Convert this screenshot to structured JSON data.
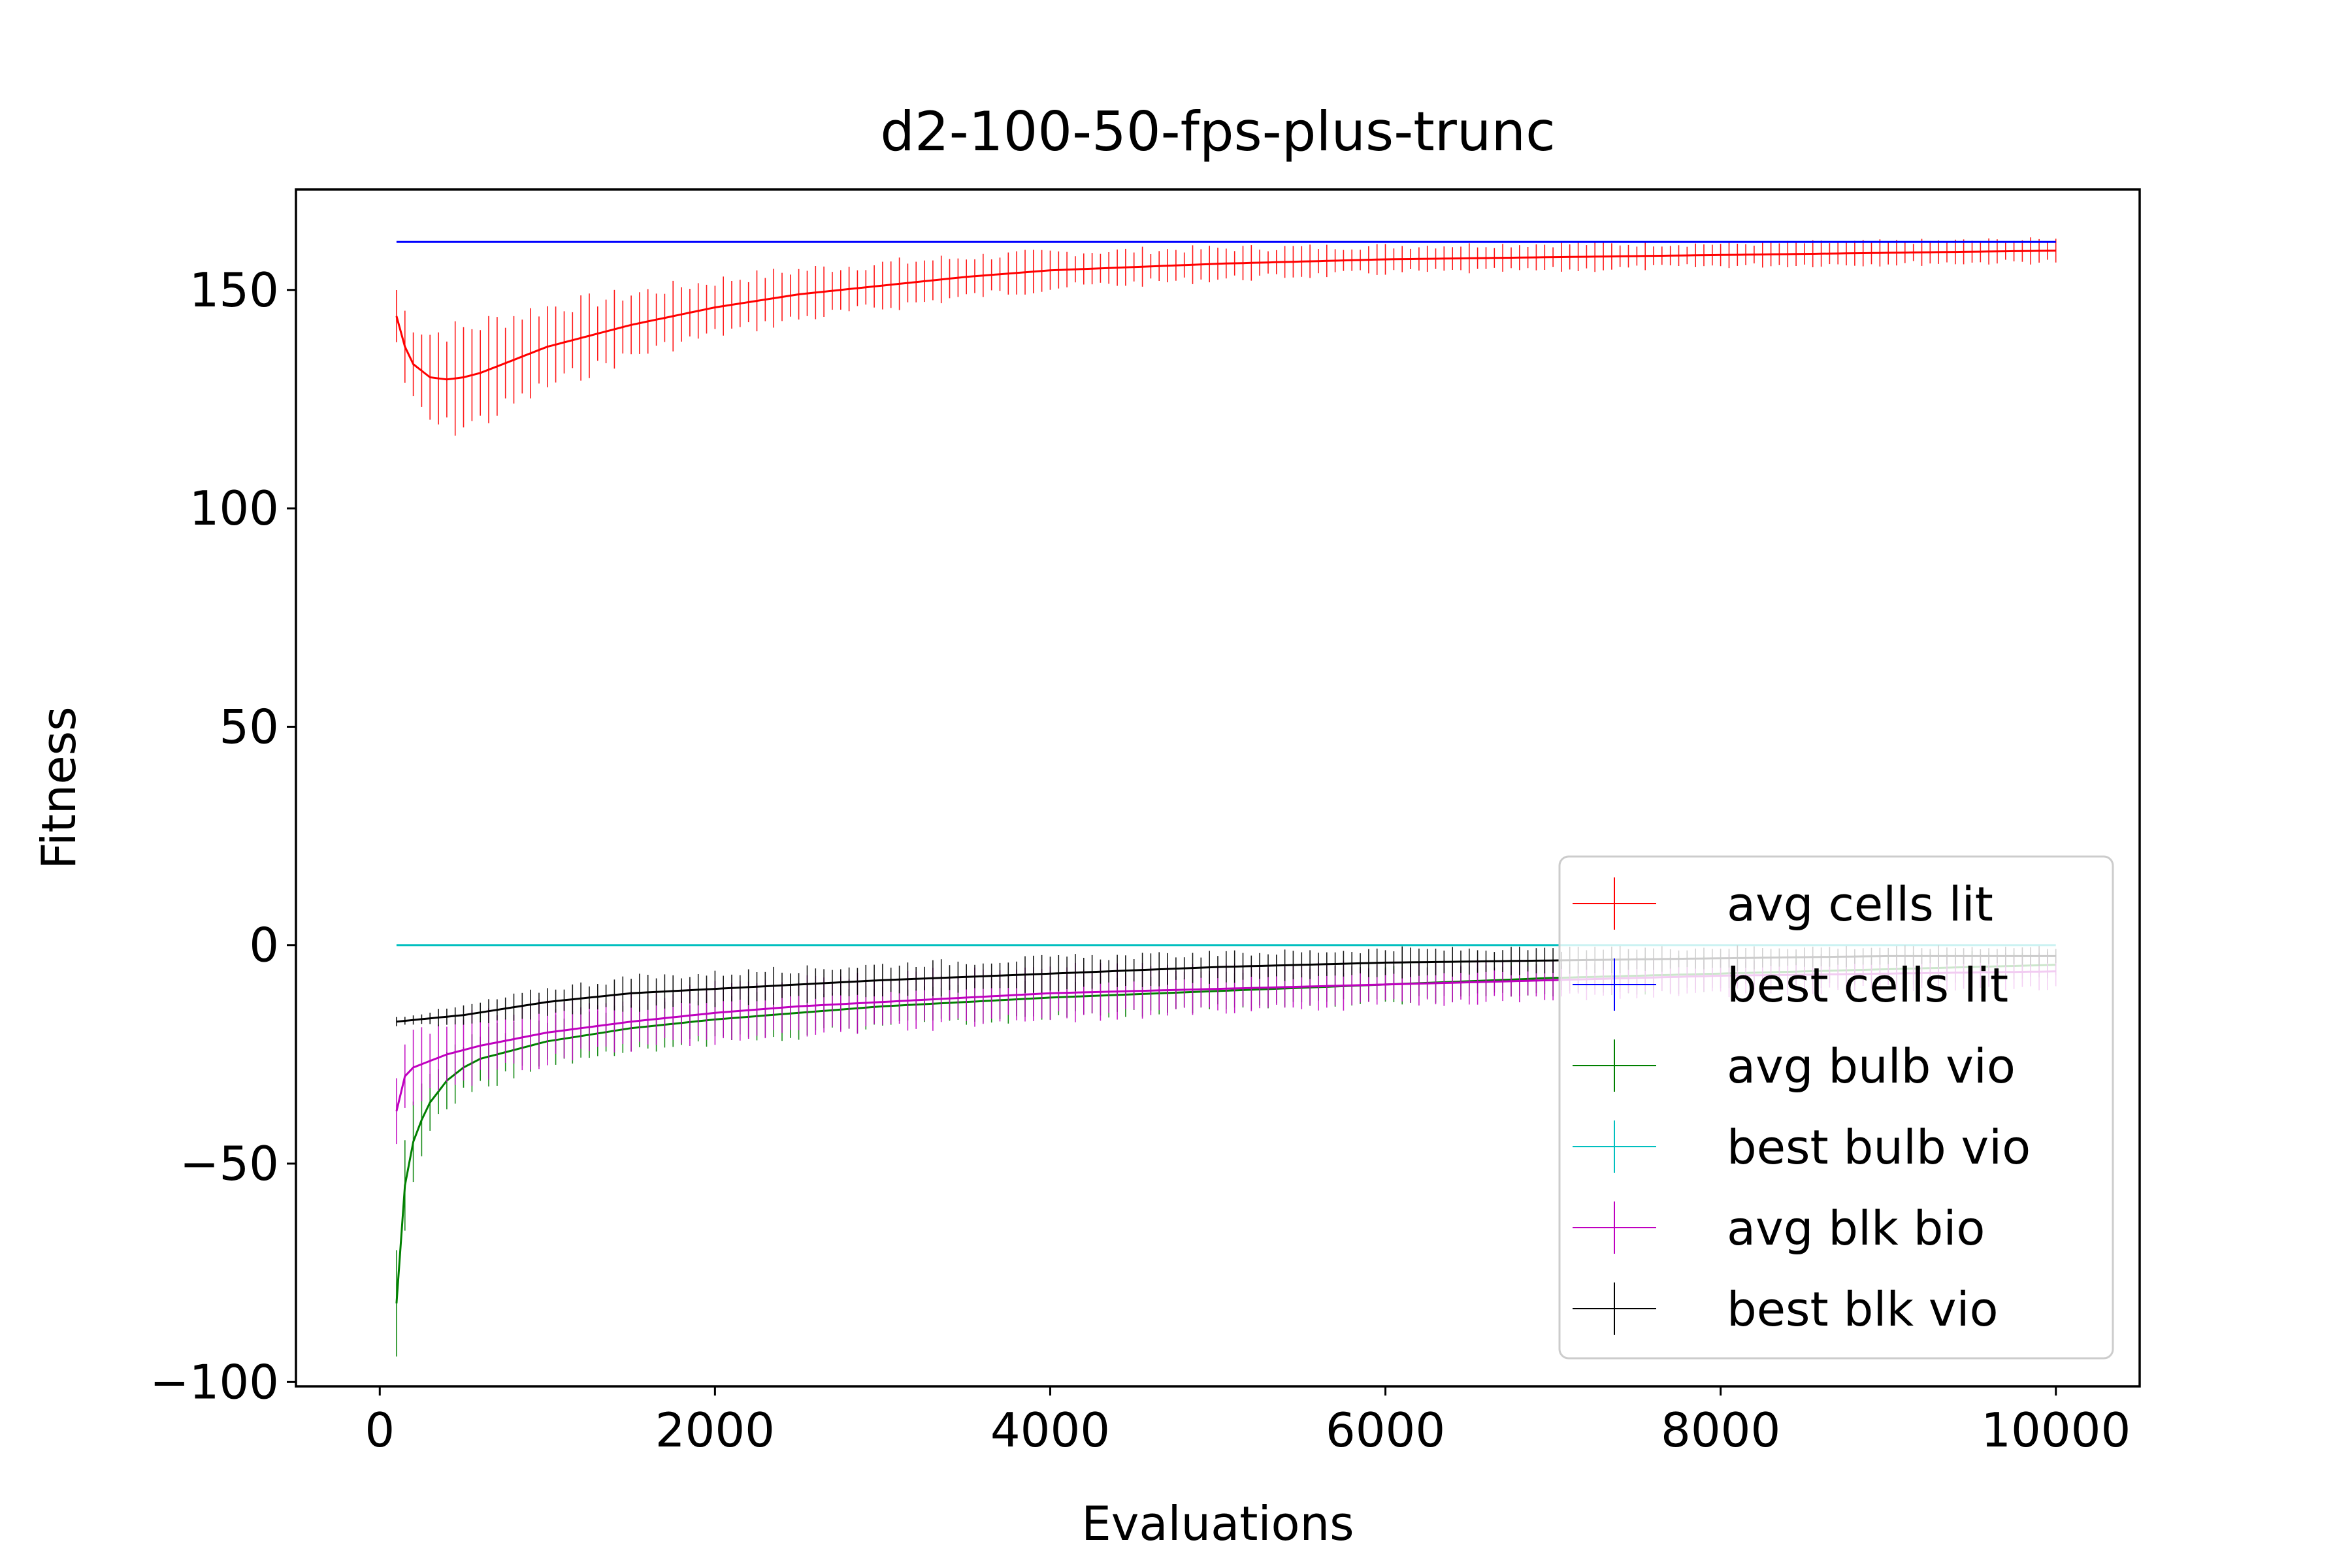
{
  "chart_data": {
    "type": "line",
    "title": "d2-100-50-fps-plus-trunc",
    "xlabel": "Evaluations",
    "ylabel": "Fitness",
    "xlim": [
      -500,
      10500
    ],
    "ylim": [
      -101,
      173
    ],
    "xticks": [
      0,
      2000,
      4000,
      6000,
      8000,
      10000
    ],
    "xtick_labels": [
      "0",
      "2000",
      "4000",
      "6000",
      "8000",
      "10000"
    ],
    "yticks": [
      -100,
      -50,
      0,
      50,
      100,
      150
    ],
    "ytick_labels": [
      "−100",
      "−50",
      "0",
      "50",
      "100",
      "150"
    ],
    "grid": false,
    "legend_position": "lower-right",
    "x_start": 100,
    "x_end": 10000,
    "error_bar_step": 50,
    "series": [
      {
        "name": "avg cells lit",
        "color": "#ff0000",
        "x": [
          100,
          150,
          200,
          300,
          400,
          500,
          600,
          800,
          1000,
          1200,
          1500,
          2000,
          2500,
          3000,
          3500,
          4000,
          5000,
          6000,
          7000,
          8000,
          9000,
          10000
        ],
        "y": [
          144,
          137,
          133,
          130,
          129.5,
          130,
          131,
          134,
          137,
          139,
          142,
          146,
          149,
          151,
          153,
          154.5,
          156,
          157,
          157.5,
          158,
          158.5,
          159
        ],
        "err": [
          6,
          8,
          9,
          10,
          11,
          11,
          11,
          10,
          9,
          8,
          7,
          6,
          5.5,
          5,
          4.5,
          4,
          3.5,
          3,
          3,
          2.5,
          2.5,
          2.5
        ]
      },
      {
        "name": "best cells lit",
        "color": "#0000ff",
        "x": [
          100,
          10000
        ],
        "y": [
          161,
          161
        ],
        "err": [
          0,
          0
        ]
      },
      {
        "name": "avg bulb vio",
        "color": "#008000",
        "x": [
          100,
          150,
          200,
          250,
          300,
          400,
          500,
          600,
          800,
          1000,
          1500,
          2000,
          2500,
          3000,
          4000,
          5000,
          6000,
          7000,
          8000,
          9000,
          10000
        ],
        "y": [
          -82,
          -55,
          -45,
          -40,
          -36,
          -31,
          -28,
          -26,
          -24,
          -22,
          -19,
          -17,
          -15.5,
          -14,
          -12,
          -10.5,
          -9,
          -7.5,
          -6.5,
          -5.5,
          -4.5
        ],
        "err": [
          10,
          10,
          9,
          8,
          7,
          6,
          6,
          6,
          5.5,
          5,
          5,
          5,
          5,
          4.5,
          4.5,
          4,
          4,
          3.5,
          3.5,
          3,
          3
        ]
      },
      {
        "name": "best bulb vio",
        "color": "#00bfbf",
        "x": [
          100,
          10000
        ],
        "y": [
          0,
          0
        ],
        "err": [
          0,
          0
        ]
      },
      {
        "name": "avg blk bio",
        "color": "#bf00bf",
        "x": [
          100,
          150,
          200,
          300,
          400,
          500,
          600,
          800,
          1000,
          1500,
          2000,
          2500,
          3000,
          4000,
          5000,
          6000,
          7000,
          8000,
          9000,
          10000
        ],
        "y": [
          -38,
          -30,
          -28,
          -26.5,
          -25,
          -24,
          -23,
          -21.5,
          -20,
          -17.5,
          -15.5,
          -14,
          -13,
          -11,
          -10,
          -9,
          -8,
          -7,
          -6.5,
          -6
        ],
        "err": [
          8,
          7,
          7,
          7,
          7,
          7,
          7,
          6.5,
          6.5,
          6,
          6,
          6,
          6,
          5.5,
          5,
          4.5,
          4,
          4,
          3.5,
          3.5
        ]
      },
      {
        "name": "best blk vio",
        "color": "#000000",
        "x": [
          100,
          500,
          1000,
          1500,
          2000,
          3000,
          4000,
          5000,
          6000,
          7000,
          8000,
          9000,
          10000
        ],
        "y": [
          -17.5,
          -16,
          -13,
          -11,
          -10,
          -8,
          -6.5,
          -5,
          -4,
          -3.5,
          -3,
          -2.5,
          -2.5
        ],
        "err": [
          1,
          2,
          3,
          3.5,
          3.5,
          3.5,
          3.5,
          3,
          3,
          2.5,
          2.5,
          2,
          2
        ]
      }
    ]
  }
}
